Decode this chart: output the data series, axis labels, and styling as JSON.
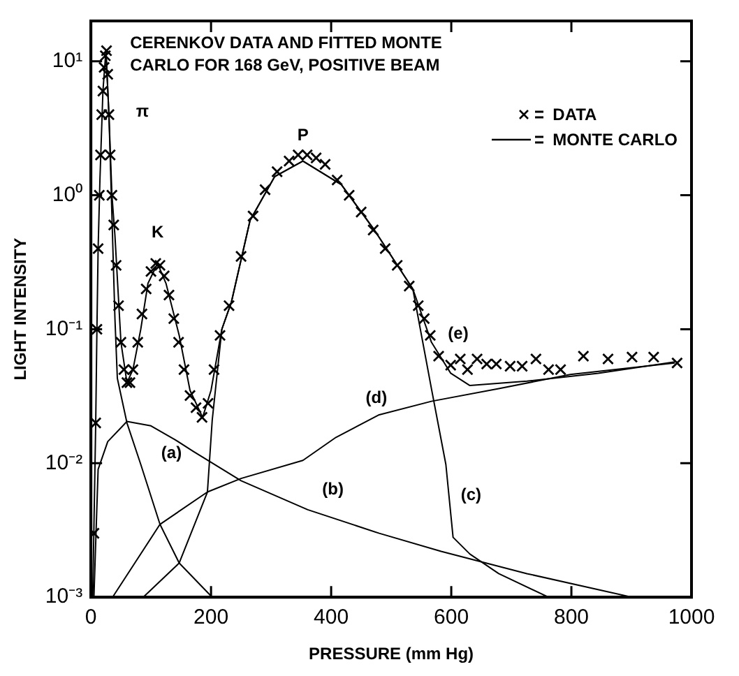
{
  "chart_data": {
    "type": "line",
    "title": "CERENKOV DATA AND FITTED MONTE CARLO FOR 168 GeV, POSITIVE BEAM",
    "xlabel": "PRESSURE (mm Hg)",
    "ylabel": "LIGHT INTENSITY",
    "log": "y",
    "grid": false,
    "legend": "top right",
    "xlim": [
      0,
      1000
    ],
    "ylim": [
      0.001,
      20
    ],
    "xticks": [
      0,
      200,
      400,
      600,
      800,
      1000
    ],
    "yticks": [
      {
        "value": 0.001,
        "label": "10⁻³"
      },
      {
        "value": 0.01,
        "label": "10⁻²"
      },
      {
        "value": 0.1,
        "label": "10⁻¹"
      },
      {
        "value": 1,
        "label": "10⁰"
      },
      {
        "value": 10,
        "label": "10¹"
      }
    ],
    "annotations": [
      {
        "text": "π",
        "x": 30,
        "y": 4
      },
      {
        "text": "K",
        "x": 111,
        "y": 0.31
      },
      {
        "text": "P",
        "x": 353,
        "y": 1.8
      },
      {
        "text": "(e)",
        "x": 579,
        "y": 0.063
      },
      {
        "text": "(a)",
        "x": 83,
        "y": 0.0098
      },
      {
        "text": "(b)",
        "x": 361,
        "y": 0.0045
      },
      {
        "text": "(c)",
        "x": 591,
        "y": 0.0098
      },
      {
        "text": "(d)",
        "x": 480,
        "y": 0.023
      }
    ],
    "series": [
      {
        "name": "DATA",
        "type": "scatter",
        "marker": "cross",
        "color": "#000000",
        "x": [
          5,
          8,
          10,
          12,
          14,
          16,
          18,
          20,
          22,
          24,
          26,
          28,
          30,
          32,
          35,
          38,
          42,
          46,
          50,
          55,
          60,
          65,
          70,
          78,
          85,
          92,
          100,
          108,
          115,
          122,
          130,
          138,
          146,
          155,
          165,
          175,
          185,
          195,
          205,
          215,
          230,
          250,
          270,
          290,
          310,
          330,
          345,
          360,
          375,
          390,
          410,
          430,
          450,
          470,
          490,
          510,
          530,
          545,
          555,
          565,
          579,
          599,
          615,
          627,
          643,
          659,
          675,
          698,
          718,
          741,
          762,
          782,
          820,
          861,
          901,
          937,
          976
        ],
        "values": [
          0.003,
          0.02,
          0.1,
          0.4,
          1,
          2,
          4,
          6,
          9,
          11,
          12,
          8,
          4,
          2,
          1,
          0.6,
          0.3,
          0.15,
          0.08,
          0.05,
          0.04,
          0.04,
          0.05,
          0.08,
          0.13,
          0.2,
          0.27,
          0.31,
          0.3,
          0.25,
          0.18,
          0.12,
          0.08,
          0.05,
          0.032,
          0.026,
          0.022,
          0.028,
          0.05,
          0.09,
          0.15,
          0.35,
          0.7,
          1.1,
          1.5,
          1.8,
          2,
          2,
          1.9,
          1.7,
          1.3,
          1,
          0.75,
          0.55,
          0.4,
          0.3,
          0.21,
          0.15,
          0.12,
          0.09,
          0.063,
          0.054,
          0.06,
          0.05,
          0.06,
          0.055,
          0.055,
          0.053,
          0.053,
          0.06,
          0.05,
          0.05,
          0.063,
          0.06,
          0.062,
          0.062,
          0.056
        ]
      },
      {
        "name": "MONTE CARLO",
        "color": "#000000",
        "x": [
          3,
          6,
          8,
          10,
          12,
          15,
          20,
          25,
          30,
          35,
          40,
          50,
          60,
          70,
          83,
          95,
          111,
          125,
          147,
          165,
          186,
          200,
          218,
          234,
          265,
          306,
          353,
          417,
          472,
          536,
          567,
          599,
          631,
          726,
          845,
          972
        ],
        "values": [
          0.001,
          0.006,
          0.02,
          0.1,
          0.4,
          1.3,
          6,
          12,
          4,
          1,
          0.5,
          0.08,
          0.04,
          0.05,
          0.1,
          0.22,
          0.31,
          0.22,
          0.09,
          0.035,
          0.022,
          0.035,
          0.1,
          0.16,
          0.65,
          1.38,
          1.8,
          1.2,
          0.55,
          0.2,
          0.08,
          0.047,
          0.038,
          0.041,
          0.047,
          0.057
        ]
      },
      {
        "color": "#000000",
        "x": [
          25,
          30,
          35,
          40,
          44,
          60,
          83,
          115,
          147,
          202
        ],
        "values": [
          12,
          4,
          0.7,
          0.12,
          0.043,
          0.02,
          0.0098,
          0.0035,
          0.0018,
          0.001
        ]
      },
      {
        "color": "#000000",
        "x": [
          5,
          12,
          28,
          60,
          100,
          140,
          170,
          250,
          361,
          480,
          583,
          726,
          901
        ],
        "values": [
          0.001,
          0.009,
          0.0145,
          0.0205,
          0.019,
          0.015,
          0.0123,
          0.0074,
          0.0045,
          0.003,
          0.0022,
          0.0015,
          0.001
        ]
      },
      {
        "color": "#000000",
        "x": [
          87,
          147,
          194,
          202,
          218,
          234,
          265,
          306,
          353,
          417,
          472,
          536,
          567,
          591,
          603,
          631,
          679,
          762
        ],
        "values": [
          0.001,
          0.0018,
          0.0061,
          0.021,
          0.1,
          0.16,
          0.65,
          1.38,
          1.8,
          1.2,
          0.55,
          0.2,
          0.036,
          0.0098,
          0.0028,
          0.0021,
          0.0015,
          0.001
        ]
      },
      {
        "color": "#000000",
        "x": [
          36,
          115,
          194,
          250,
          353,
          408,
          480,
          567,
          679,
          798,
          972
        ],
        "values": [
          0.001,
          0.0035,
          0.0061,
          0.0077,
          0.0105,
          0.0156,
          0.023,
          0.029,
          0.036,
          0.046,
          0.056
        ]
      }
    ]
  }
}
